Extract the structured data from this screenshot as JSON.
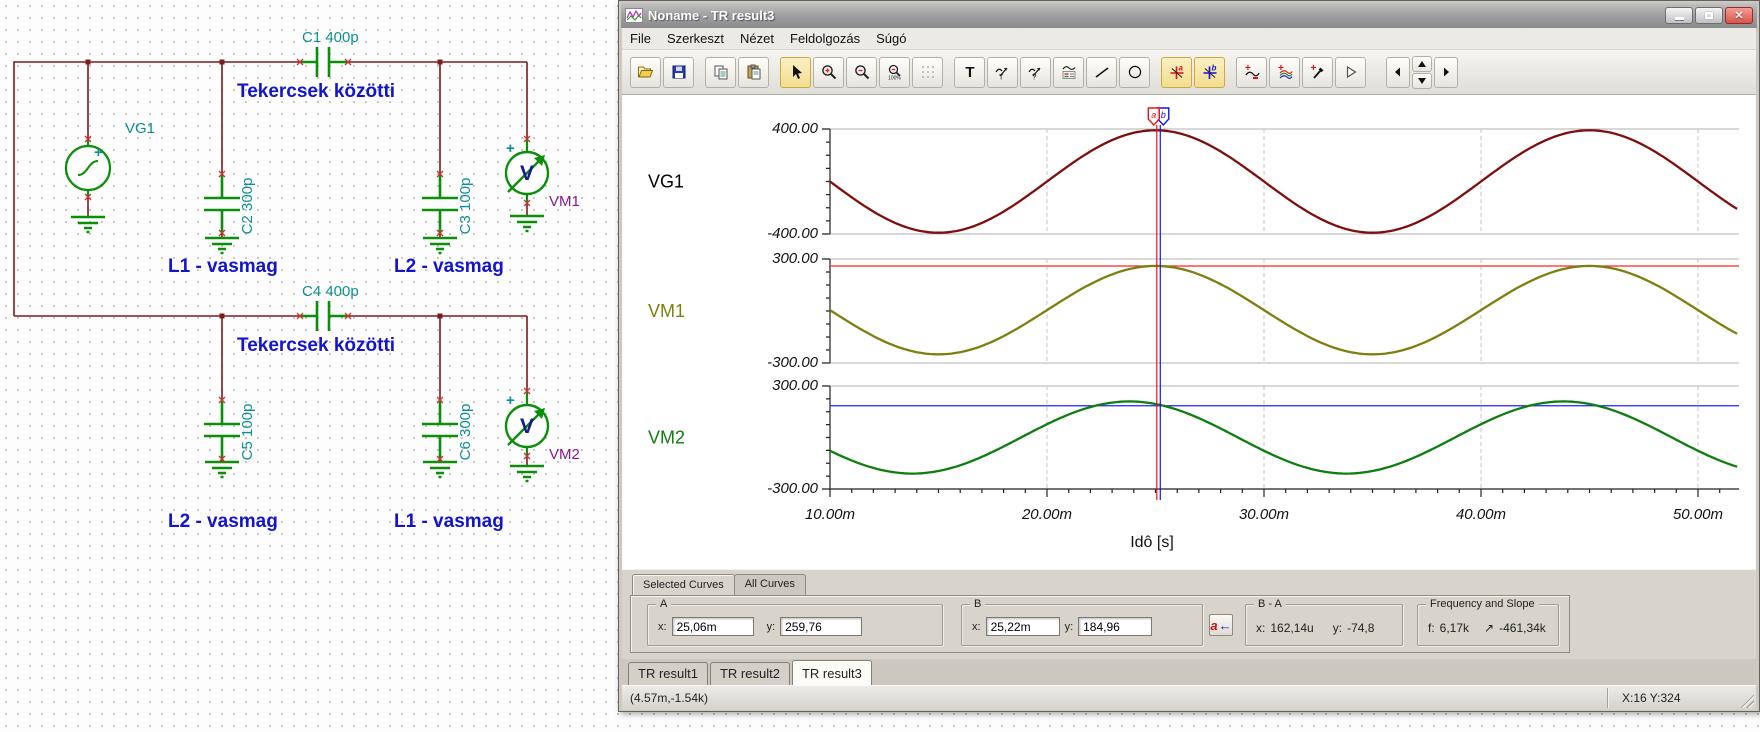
{
  "schematic": {
    "source_label": "VG1",
    "plus": "+",
    "cap_labels": {
      "c1": "C1 400p",
      "c2": "C2 300p",
      "c3": "C3 100p",
      "c4": "C4 400p",
      "c5": "C5 100p",
      "c6": "C6 300p"
    },
    "coupling_label": "Tekercsek közötti",
    "inductor_labels": {
      "top_left": "L1 - vasmag",
      "top_right": "L2 - vasmag",
      "bottom_left": "L2 - vasmag",
      "bottom_right": "L1 - vasmag"
    },
    "meter_labels": {
      "vm1": "VM1",
      "vm2": "VM2"
    },
    "colors": {
      "wire": "#7b1b1b",
      "component": "#0b8f0b",
      "cap_label": "#0e8f8f",
      "net_label": "#1414cc",
      "meter_label": "#8b1a8b",
      "terminal_x": "#cc3333"
    }
  },
  "window": {
    "title": "Noname - TR result3",
    "menu": [
      "File",
      "Szerkeszt",
      "Nézet",
      "Feldolgozás",
      "Súgó"
    ],
    "toolbar_buttons": [
      "open",
      "save",
      "copy",
      "paste",
      "select-cursor",
      "zoom-in",
      "zoom-out",
      "zoom-100",
      "grid",
      "text",
      "annotation-pointer",
      "annotation-query",
      "legend",
      "line",
      "ellipse",
      "cursor-a",
      "cursor-b",
      "add-curve",
      "add-curves",
      "trace-picker",
      "marker-flag",
      "nav-left",
      "nav-spinner",
      "nav-right"
    ]
  },
  "chart_data": {
    "type": "line",
    "xlabel": "Idô [s]",
    "x_range_ms": [
      10,
      51.9
    ],
    "x_ticks": [
      {
        "t_ms": 10,
        "label": "10.00m"
      },
      {
        "t_ms": 20,
        "label": "20.00m"
      },
      {
        "t_ms": 30,
        "label": "30.00m"
      },
      {
        "t_ms": 40,
        "label": "40.00m"
      },
      {
        "t_ms": 50,
        "label": "50.00m"
      }
    ],
    "grid_ms": [
      20,
      30,
      40,
      50
    ],
    "legend_position": "left",
    "grid": true,
    "plots": [
      {
        "name": "VG1",
        "color": "#7d0f0f",
        "label_color": "#000000",
        "ylim": [
          -400,
          400
        ],
        "ytick_labels": [
          "400.00",
          "-400.00"
        ],
        "wave": {
          "type": "sine",
          "amplitude": 390,
          "offset": 0,
          "period_ms": 20,
          "peak_at_ms": 25.0
        }
      },
      {
        "name": "VM1",
        "color": "#7f7f10",
        "label_color": "#7f7f10",
        "ylim": [
          -300,
          300
        ],
        "ytick_labels": [
          "300.00",
          "-300.00"
        ],
        "wave": {
          "type": "sine",
          "amplitude": 255,
          "offset": 5,
          "period_ms": 20,
          "peak_at_ms": 25.0
        },
        "hline": {
          "color": "#ff2020",
          "value": 259.76
        }
      },
      {
        "name": "VM2",
        "color": "#0f7d0f",
        "label_color": "#0f7d0f",
        "ylim": [
          -300,
          300
        ],
        "ytick_labels": [
          "300.00",
          "-300.00"
        ],
        "wave": {
          "type": "sine",
          "amplitude": 210,
          "offset": 0,
          "period_ms": 20,
          "peak_at_ms": 23.8
        },
        "hline": {
          "color": "#2020ff",
          "value": 184.96
        }
      }
    ],
    "cursors": [
      {
        "name": "a",
        "color": "#ee1111",
        "x_ms": 25.06
      },
      {
        "name": "b",
        "color": "#1111ee",
        "x_ms": 25.22
      }
    ]
  },
  "curves_panel": {
    "tabs": [
      {
        "label": "Selected Curves",
        "active": true
      },
      {
        "label": "All Curves",
        "active": false
      }
    ],
    "group_a": {
      "title": "A",
      "x_label": "x:",
      "x_value": "25,06m",
      "y_label": "y:",
      "y_value": "259,76"
    },
    "group_b": {
      "title": "B",
      "x_label": "x:",
      "x_value": "25,22m",
      "y_label": "y:",
      "y_value": "184,96",
      "jump_button": {
        "letter": "a",
        "arrow": "←"
      }
    },
    "group_diff": {
      "title": "B - A",
      "x_label": "x:",
      "x_value": "162,14u",
      "y_label": "y:",
      "y_value": "-74,8"
    },
    "group_freq": {
      "title": "Frequency and Slope",
      "f_label": "f:",
      "f_value": "6,17k",
      "slope_icon": "↗",
      "slope_value": "-461,34k"
    }
  },
  "result_tabs": [
    {
      "label": "TR result1"
    },
    {
      "label": "TR result2"
    },
    {
      "label": "TR result3",
      "active": true
    }
  ],
  "status_bar": {
    "coords": "(4.57m,-1.54k)",
    "position": "X:16  Y:324"
  }
}
